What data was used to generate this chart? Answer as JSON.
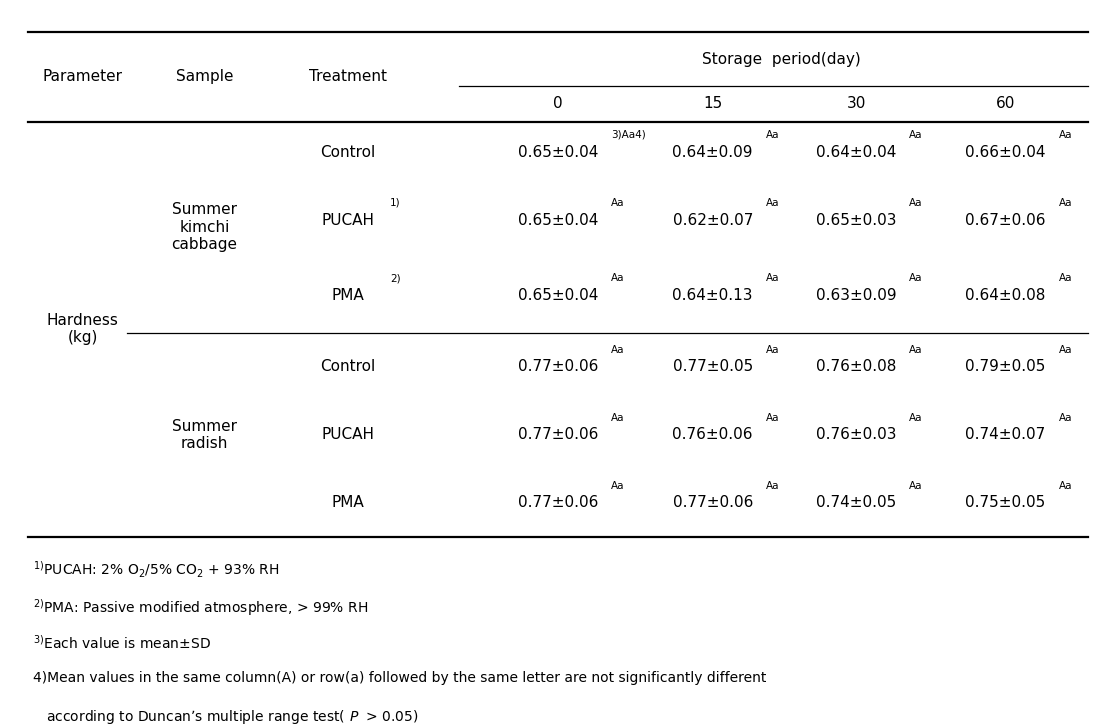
{
  "storage_period_label": "Storage period(day)",
  "col_headers": [
    "Parameter",
    "Sample",
    "Treatment",
    "0",
    "15",
    "30",
    "60"
  ],
  "parameter_label": "Hardness\n(kg)",
  "sample_labels": [
    "Summer\nkimchi\ncabbage",
    "Summer\nradish"
  ],
  "treatment_labels": [
    [
      "Control",
      ""
    ],
    [
      "PUCAH",
      "1)"
    ],
    [
      "PMA",
      "2)"
    ],
    [
      "Control",
      ""
    ],
    [
      "PUCAH",
      ""
    ],
    [
      "PMA",
      ""
    ]
  ],
  "cell_data": [
    [
      [
        "0.65±0.04",
        "3)Aa4)"
      ],
      [
        "0.64±0.09",
        "Aa"
      ],
      [
        "0.64±0.04",
        "Aa"
      ],
      [
        "0.66±0.04",
        "Aa"
      ]
    ],
    [
      [
        "0.65±0.04",
        "Aa"
      ],
      [
        "0.62±0.07",
        "Aa"
      ],
      [
        "0.65±0.03",
        "Aa"
      ],
      [
        "0.67±0.06",
        "Aa"
      ]
    ],
    [
      [
        "0.65±0.04",
        "Aa"
      ],
      [
        "0.64±0.13",
        "Aa"
      ],
      [
        "0.63±0.09",
        "Aa"
      ],
      [
        "0.64±0.08",
        "Aa"
      ]
    ],
    [
      [
        "0.77±0.06",
        "Aa"
      ],
      [
        "0.77±0.05",
        "Aa"
      ],
      [
        "0.76±0.08",
        "Aa"
      ],
      [
        "0.79±0.05",
        "Aa"
      ]
    ],
    [
      [
        "0.77±0.06",
        "Aa"
      ],
      [
        "0.76±0.06",
        "Aa"
      ],
      [
        "0.76±0.03",
        "Aa"
      ],
      [
        "0.74±0.07",
        "Aa"
      ]
    ],
    [
      [
        "0.77±0.06",
        "Aa"
      ],
      [
        "0.77±0.06",
        "Aa"
      ],
      [
        "0.74±0.05",
        "Aa"
      ],
      [
        "0.75±0.05",
        "Aa"
      ]
    ]
  ],
  "footnote1": "1)PUCAH: 2% O2/5% CO2 + 93% RH",
  "footnote2": "2)PMA: Passive modified atmosphere, > 99% RH",
  "footnote3": "3)Each value is mean±SD",
  "footnote4a": "4)Mean values in the same column(A) or row(a) followed by the same letter are not significantly different",
  "footnote4b": "   according to Duncan’s multiple range test(P > 0.05)",
  "bg_color": "white",
  "text_color": "black",
  "font_size": 11,
  "footnote_font_size": 10
}
